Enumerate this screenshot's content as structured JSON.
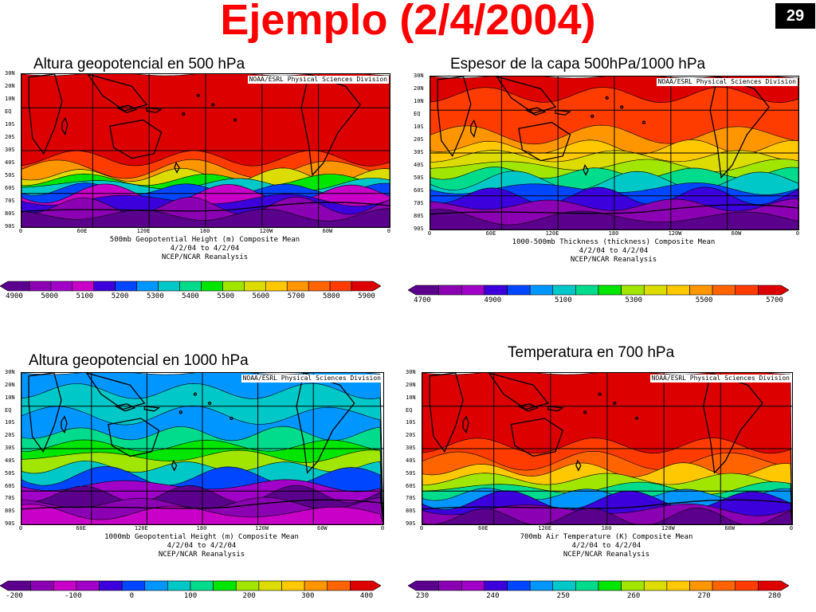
{
  "slide": {
    "title": "Ejemplo (2/4/2004)",
    "page_number": "29"
  },
  "credit": "NOAA/ESRL Physical Sciences Division",
  "lat_labels": [
    "30N",
    "20N",
    "10N",
    "EQ",
    "10S",
    "20S",
    "30S",
    "40S",
    "50S",
    "60S",
    "70S",
    "80S",
    "90S"
  ],
  "lon_labels": [
    "0",
    "60E",
    "120E",
    "180",
    "120W",
    "60W",
    "0"
  ],
  "panels": [
    {
      "id": "z500",
      "label": "Altura geopotencial en 500 hPa",
      "caption": [
        "500mb Geopotential Height (m) Composite Mean",
        "4/2/04  to 4/2/04",
        "NCEP/NCAR Reanalysis"
      ],
      "colorbar_labels": [
        "4900",
        "5000",
        "5100",
        "5200",
        "5300",
        "5400",
        "5500",
        "5600",
        "5700",
        "5800",
        "5900"
      ],
      "colors": [
        "#5a008c",
        "#8c00b4",
        "#a000c8",
        "#c800c8",
        "#3c00dc",
        "#0046ff",
        "#0096ff",
        "#00c8c8",
        "#00dc8c",
        "#00e600",
        "#a0e600",
        "#dcdc00",
        "#ffc800",
        "#ff9600",
        "#ff6400",
        "#ff3c00",
        "#dc0000"
      ]
    },
    {
      "id": "thk",
      "label": "Espesor de la capa 500hPa/1000 hPa",
      "caption": [
        "1000-500mb Thickness (thickness) Composite Mean",
        "4/2/04  to 4/2/04",
        "NCEP/NCAR Reanalysis"
      ],
      "colorbar_labels": [
        "4700",
        "4900",
        "5100",
        "5300",
        "5500",
        "5700"
      ],
      "colors": [
        "#5a008c",
        "#8c00b4",
        "#a000c8",
        "#3c00dc",
        "#0046ff",
        "#0096ff",
        "#00c8c8",
        "#00dc8c",
        "#00e600",
        "#a0e600",
        "#dcdc00",
        "#ffc800",
        "#ff9600",
        "#ff6400",
        "#ff3c00",
        "#dc0000"
      ]
    },
    {
      "id": "z1000",
      "label": "Altura geopotencial en 1000 hPa",
      "caption": [
        "1000mb Geopotential Height (m) Composite Mean",
        "4/2/04  to 4/2/04",
        "NCEP/NCAR Reanalysis"
      ],
      "colorbar_labels": [
        "-200",
        "-100",
        "0",
        "100",
        "200",
        "300",
        "400"
      ],
      "colors": [
        "#5a008c",
        "#8c00b4",
        "#c800c8",
        "#a000c8",
        "#3c00dc",
        "#0046ff",
        "#0096ff",
        "#00c8c8",
        "#00dc8c",
        "#00e600",
        "#a0e600",
        "#dcdc00",
        "#ffc800",
        "#ff9600",
        "#ff6400",
        "#dc0000"
      ]
    },
    {
      "id": "t700",
      "label": "Temperatura en 700 hPa",
      "caption": [
        "700mb Air Temperature (K) Composite Mean",
        "4/2/04  to 4/2/04",
        "NCEP/NCAR Reanalysis"
      ],
      "colorbar_labels": [
        "230",
        "240",
        "250",
        "260",
        "270",
        "280"
      ],
      "colors": [
        "#5a008c",
        "#8c00b4",
        "#a000c8",
        "#3c00dc",
        "#0046ff",
        "#0096ff",
        "#00c8c8",
        "#00dc8c",
        "#00e600",
        "#a0e600",
        "#dcdc00",
        "#ffc800",
        "#ff9600",
        "#ff6400",
        "#ff3c00",
        "#dc0000"
      ]
    }
  ]
}
